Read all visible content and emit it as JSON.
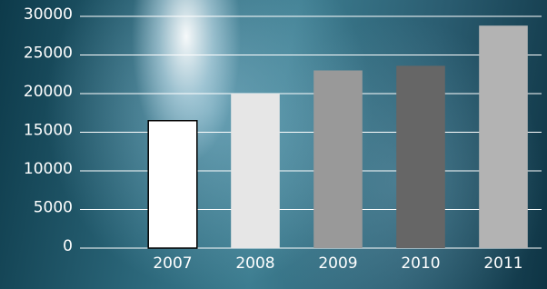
{
  "chart_data": {
    "type": "bar",
    "categories": [
      "2007",
      "2008",
      "2009",
      "2010",
      "2011"
    ],
    "values": [
      16500,
      20000,
      23000,
      23600,
      28800
    ],
    "colors": [
      "#ffffff",
      "#e6e6e6",
      "#999999",
      "#666666",
      "#b3b3b3"
    ],
    "ylim": [
      0,
      30000
    ],
    "yticks": [
      0,
      5000,
      10000,
      15000,
      20000,
      25000,
      30000
    ],
    "grid": true
  }
}
